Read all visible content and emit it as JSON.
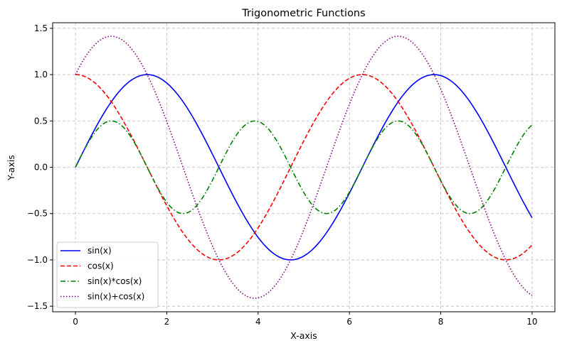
{
  "chart_data": {
    "type": "line",
    "title": "Trigonometric Functions",
    "xlabel": "X-axis",
    "ylabel": "Y-axis",
    "xlim": [
      -0.5,
      10.5
    ],
    "ylim": [
      -1.56,
      1.56
    ],
    "x_ticks": [
      0,
      2,
      4,
      6,
      8,
      10
    ],
    "x_tick_labels": [
      "0",
      "2",
      "4",
      "6",
      "8",
      "10"
    ],
    "y_ticks": [
      -1.5,
      -1.0,
      -0.5,
      0.0,
      0.5,
      1.0,
      1.5
    ],
    "y_tick_labels": [
      "−1.5",
      "−1.0",
      "−0.5",
      "0.0",
      "0.5",
      "1.0",
      "1.5"
    ],
    "grid": true,
    "legend_position": "lower-left",
    "x": {
      "start": 0,
      "stop": 10,
      "num_points": 201
    },
    "series": [
      {
        "name": "sin(x)",
        "function": "sin",
        "color": "#0000ff",
        "linestyle": "solid",
        "sample_values": {
          "x": [
            0,
            1.571,
            3.142,
            4.712,
            7.854,
            10
          ],
          "y": [
            0.0,
            1.0,
            0.0,
            -1.0,
            1.0,
            -0.544
          ]
        }
      },
      {
        "name": "cos(x)",
        "function": "cos",
        "color": "#ff0000",
        "linestyle": "dashed",
        "sample_values": {
          "x": [
            0,
            3.142,
            6.283,
            9.425,
            10
          ],
          "y": [
            1.0,
            -1.0,
            1.0,
            -1.0,
            -0.839
          ]
        }
      },
      {
        "name": "sin(x)*cos(x)",
        "function": "sincos",
        "color": "#008000",
        "linestyle": "dashdot",
        "sample_values": {
          "x": [
            0,
            0.785,
            2.356,
            3.927,
            5.498,
            7.069,
            8.639,
            10
          ],
          "y": [
            0.0,
            0.5,
            -0.5,
            0.5,
            -0.5,
            0.5,
            -0.5,
            0.456
          ]
        }
      },
      {
        "name": "sin(x)+cos(x)",
        "function": "sinpluscos",
        "color": "#800080",
        "linestyle": "dotted",
        "sample_values": {
          "x": [
            0,
            0.785,
            3.927,
            7.069,
            10
          ],
          "y": [
            1.0,
            1.414,
            -1.414,
            1.414,
            -1.383
          ]
        }
      }
    ]
  }
}
